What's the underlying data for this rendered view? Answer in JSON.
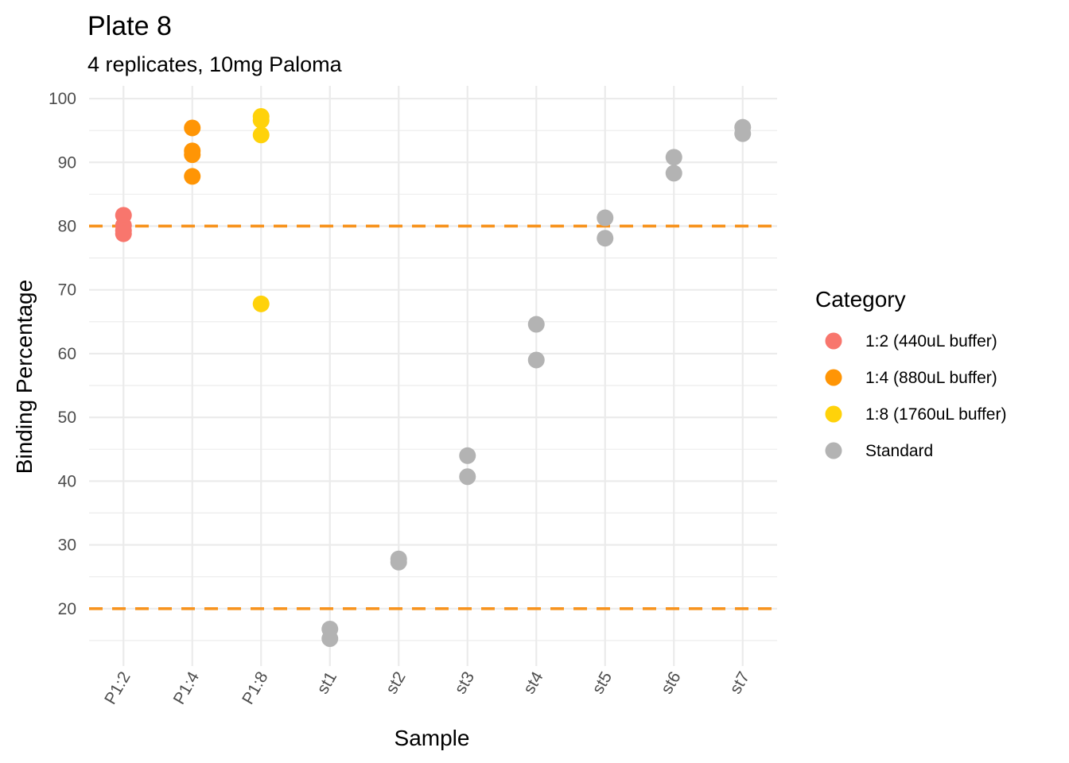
{
  "chart_data": {
    "type": "scatter",
    "title": "Plate 8",
    "subtitle": "4 replicates, 10mg Paloma",
    "xlabel": "Sample",
    "ylabel": "Binding Percentage",
    "categories": [
      "P1:2",
      "P1:4",
      "P1:8",
      "st1",
      "st2",
      "st3",
      "st4",
      "st5",
      "st6",
      "st7"
    ],
    "ylim": [
      11,
      102
    ],
    "yticks": [
      20,
      30,
      40,
      50,
      60,
      70,
      80,
      90,
      100
    ],
    "reference_lines": [
      {
        "y": 80,
        "color": "#F7931E",
        "style": "dashed"
      },
      {
        "y": 20,
        "color": "#F7931E",
        "style": "dashed"
      }
    ],
    "legend": {
      "title": "Category",
      "position": "right",
      "items": [
        {
          "label": "1:2 (440uL buffer)",
          "color": "#F8766D"
        },
        {
          "label": "1:4 (880uL buffer)",
          "color": "#FF9505"
        },
        {
          "label": "1:8 (1760uL buffer)",
          "color": "#FFD20A"
        },
        {
          "label": "Standard",
          "color": "#B3B3B3"
        }
      ]
    },
    "series": [
      {
        "name": "1:2 (440uL buffer)",
        "color": "#F8766D",
        "points": [
          [
            "P1:2",
            81.7
          ],
          [
            "P1:2",
            80.1
          ],
          [
            "P1:2",
            79.3
          ],
          [
            "P1:2",
            78.8
          ]
        ]
      },
      {
        "name": "1:4 (880uL buffer)",
        "color": "#FF9505",
        "points": [
          [
            "P1:4",
            95.4
          ],
          [
            "P1:4",
            91.8
          ],
          [
            "P1:4",
            91.2
          ],
          [
            "P1:4",
            87.8
          ]
        ]
      },
      {
        "name": "1:8 (1760uL buffer)",
        "color": "#FFD20A",
        "points": [
          [
            "P1:8",
            97.2
          ],
          [
            "P1:8",
            96.6
          ],
          [
            "P1:8",
            94.3
          ],
          [
            "P1:8",
            67.8
          ]
        ]
      },
      {
        "name": "Standard",
        "color": "#B3B3B3",
        "points": [
          [
            "st1",
            16.8
          ],
          [
            "st1",
            15.3
          ],
          [
            "st2",
            27.8
          ],
          [
            "st2",
            27.3
          ],
          [
            "st3",
            44.0
          ],
          [
            "st3",
            40.7
          ],
          [
            "st4",
            64.6
          ],
          [
            "st4",
            59.0
          ],
          [
            "st5",
            81.3
          ],
          [
            "st5",
            78.1
          ],
          [
            "st6",
            90.8
          ],
          [
            "st6",
            88.3
          ],
          [
            "st7",
            95.5
          ],
          [
            "st7",
            94.5
          ]
        ]
      }
    ]
  }
}
